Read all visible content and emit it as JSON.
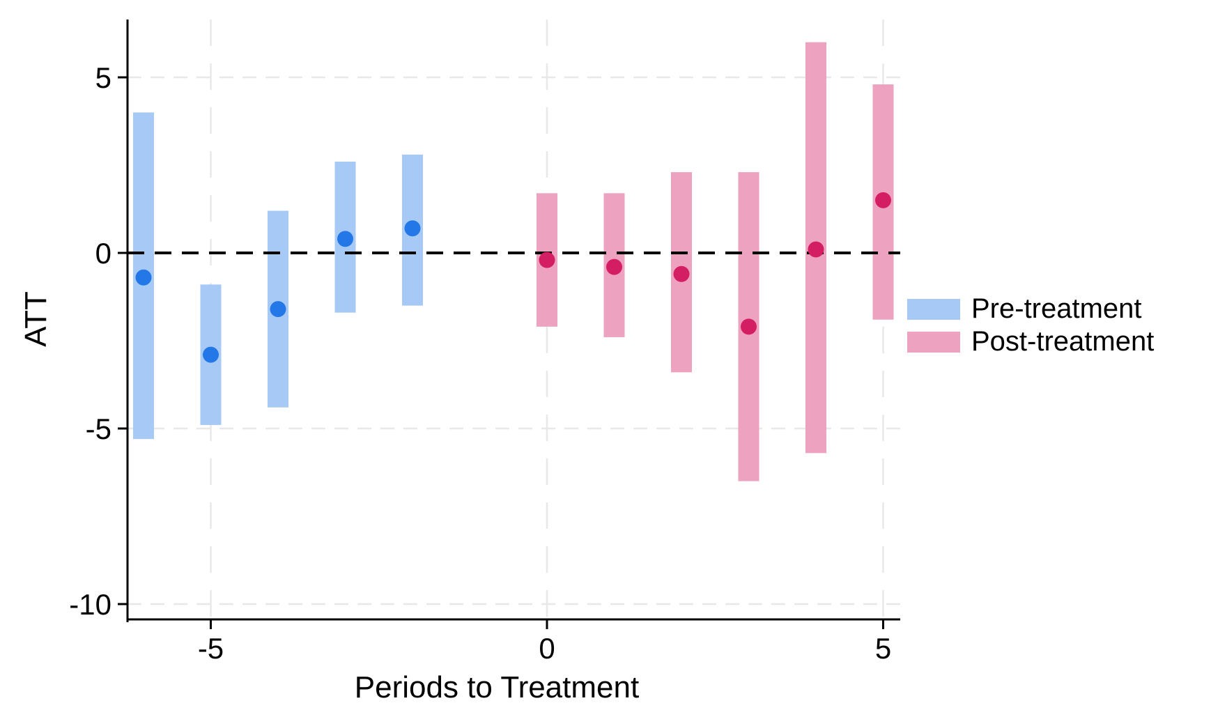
{
  "axes": {
    "x_label": "Periods to Treatment",
    "y_label": "ATT",
    "x_ticks": [
      {
        "value": -5,
        "label": "-5"
      },
      {
        "value": 0,
        "label": "0"
      },
      {
        "value": 5,
        "label": "5"
      }
    ],
    "y_ticks": [
      {
        "value": 5,
        "label": "5"
      },
      {
        "value": 0,
        "label": "0"
      },
      {
        "value": -5,
        "label": "-5"
      },
      {
        "value": -10,
        "label": "-10"
      }
    ],
    "x_range": [
      -6.25,
      5.25
    ],
    "y_range": [
      -10.5,
      6.65
    ],
    "grid": true
  },
  "reference_line": {
    "y": 0,
    "style": "dashed",
    "color": "#000000"
  },
  "chart_data": {
    "type": "bar",
    "description": "Event-study plot: ATT point estimates (dots) with confidence-interval bars by period relative to treatment; period -1 omitted as reference.",
    "title": "",
    "xlabel": "Periods to Treatment",
    "ylabel": "ATT",
    "legend_position": "right",
    "series": [
      {
        "name": "Pre-treatment",
        "bar_color": "#a7c9f6",
        "dot_color": "#2477e6",
        "points": [
          {
            "x": -6,
            "estimate": -0.7,
            "ci_low": -5.3,
            "ci_high": 4.0
          },
          {
            "x": -5,
            "estimate": -2.9,
            "ci_low": -4.9,
            "ci_high": -0.9
          },
          {
            "x": -4,
            "estimate": -1.6,
            "ci_low": -4.4,
            "ci_high": 1.2
          },
          {
            "x": -3,
            "estimate": 0.4,
            "ci_low": -1.7,
            "ci_high": 2.6
          },
          {
            "x": -2,
            "estimate": 0.7,
            "ci_low": -1.5,
            "ci_high": 2.8
          }
        ]
      },
      {
        "name": "Post-treatment",
        "bar_color": "#eda2c0",
        "dot_color": "#d41e63",
        "points": [
          {
            "x": 0,
            "estimate": -0.2,
            "ci_low": -2.1,
            "ci_high": 1.7
          },
          {
            "x": 1,
            "estimate": -0.4,
            "ci_low": -2.4,
            "ci_high": 1.7
          },
          {
            "x": 2,
            "estimate": -0.6,
            "ci_low": -3.4,
            "ci_high": 2.3
          },
          {
            "x": 3,
            "estimate": -2.1,
            "ci_low": -6.5,
            "ci_high": 2.3
          },
          {
            "x": 4,
            "estimate": 0.1,
            "ci_low": -5.7,
            "ci_high": 6.0
          },
          {
            "x": 5,
            "estimate": 1.5,
            "ci_low": -1.9,
            "ci_high": 4.8
          }
        ]
      }
    ]
  },
  "legend": {
    "items": [
      {
        "label": "Pre-treatment",
        "color": "#a7c9f6"
      },
      {
        "label": "Post-treatment",
        "color": "#eda2c0"
      }
    ]
  },
  "colors": {
    "background": "#ffffff",
    "grid": "#e8e8e8",
    "axis": "#000000",
    "tick_label": "#000000"
  }
}
